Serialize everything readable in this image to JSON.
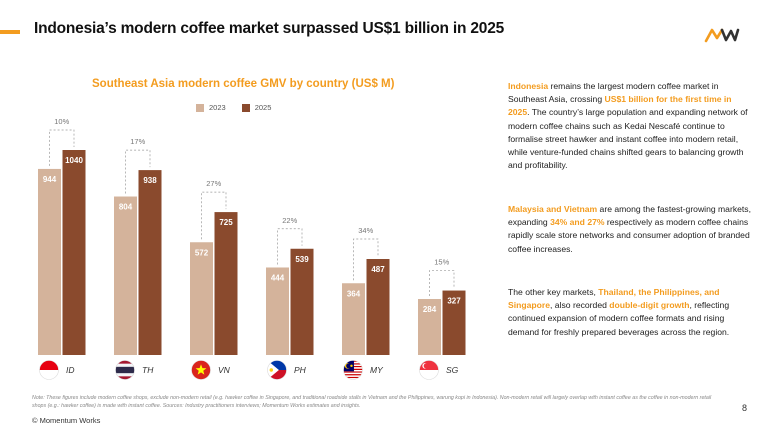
{
  "header": {
    "title": "Indonesia’s modern coffee market surpassed US$1 billion in 2025"
  },
  "colors": {
    "accent": "#f39c1f",
    "bar_2023": "#d4b39b",
    "bar_2025": "#8a4a2d"
  },
  "chart_data": {
    "type": "bar",
    "title": "Southeast Asia modern coffee GMV by country (US$ M)",
    "categories": [
      "ID",
      "TH",
      "VN",
      "PH",
      "MY",
      "SG"
    ],
    "series": [
      {
        "name": "2023",
        "values": [
          944,
          804,
          572,
          444,
          364,
          284
        ]
      },
      {
        "name": "2025",
        "values": [
          1040,
          938,
          725,
          539,
          487,
          327
        ]
      }
    ],
    "growth_labels": [
      "10%",
      "17%",
      "27%",
      "22%",
      "34%",
      "15%"
    ],
    "ylim": [
      0,
      1040
    ],
    "grid": false,
    "legend": "top"
  },
  "commentary": {
    "p1": [
      {
        "t": "Indonesia",
        "h": true
      },
      {
        "t": " remains the largest modern coffee market in Southeast Asia, crossing ",
        "h": false
      },
      {
        "t": "US$1 billion for the first time in 2025",
        "h": true
      },
      {
        "t": ". The country’s large population and expanding network of modern coffee chains such as Kedai Nescafé continue to formalise street hawker and instant coffee into modern retail, while venture-funded chains shifted gears to balancing growth and profitability.",
        "h": false
      }
    ],
    "p2": [
      {
        "t": "Malaysia and Vietnam",
        "h": true
      },
      {
        "t": " are among the fastest-growing markets, expanding ",
        "h": false
      },
      {
        "t": "34% and 27%",
        "h": true
      },
      {
        "t": " respectively as modern coffee chains rapidly scale store networks and consumer adoption of branded coffee increases.",
        "h": false
      }
    ],
    "p3": [
      {
        "t": "The other key markets, ",
        "h": false
      },
      {
        "t": "Thailand, the Philippines, and Singapore",
        "h": true
      },
      {
        "t": ", also recorded ",
        "h": false
      },
      {
        "t": "double-digit growth",
        "h": true
      },
      {
        "t": ", reflecting continued expansion of modern coffee formats and rising demand for freshly prepared beverages across the region.",
        "h": false
      }
    ]
  },
  "footer": {
    "note": "Note: These figures include modern coffee shops, exclude non-modern retail (e.g. hawker coffee in Singapore, and traditional roadside stalls in Vietnam and the Philippines, warung kopi in Indonesia). Non-modern retail will largely overlap with instant coffee as the coffee in non-modern retail shops (e.g.: hawker coffee) is made with instant coffee. Sources: Industry practitioners interviews; Momentum Works estimates and insights.",
    "page": "8",
    "copyright": "© Momentum Works"
  }
}
